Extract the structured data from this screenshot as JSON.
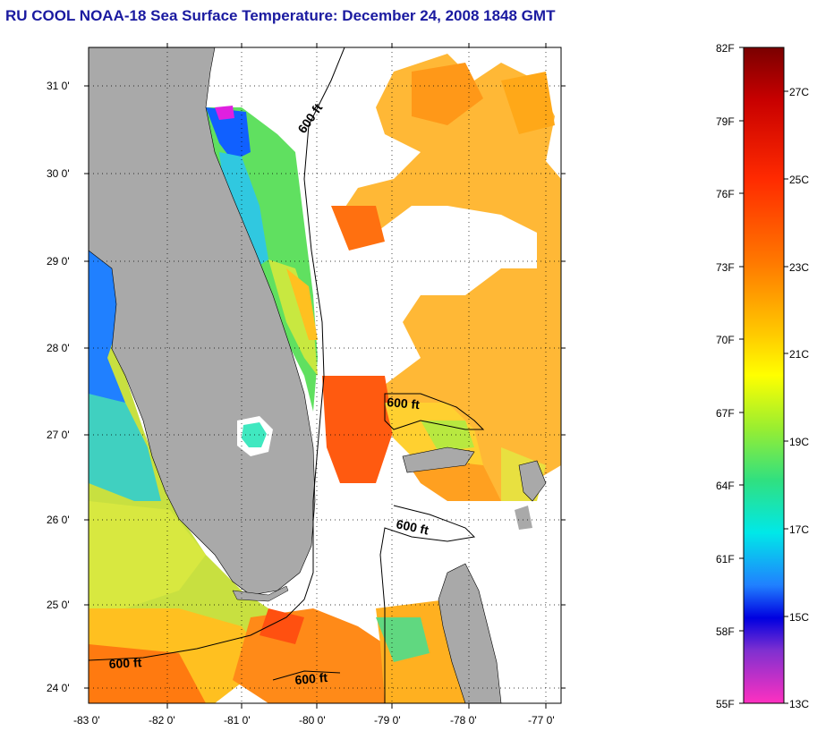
{
  "title": "RU COOL  NOAA-18  Sea Surface Temperature:  December 24, 2008 1848 GMT",
  "map": {
    "lat_ticks": [
      "31 0'",
      "30 0'",
      "29 0'",
      "28 0'",
      "27 0'",
      "26 0'",
      "25 0'",
      "24 0'"
    ],
    "lon_ticks": [
      "-83 0'",
      "-82 0'",
      "-81 0'",
      "-80 0'",
      "-79 0'",
      "-78 0'",
      "-77 0'"
    ],
    "contour_labels": [
      "600 ft",
      "600 ft",
      "600 ft",
      "600 ft",
      "600 ft"
    ],
    "colors": {
      "land": "#a9a9a9",
      "cloud": "#ffffff",
      "grid": "#000000"
    }
  },
  "colorbar": {
    "fahrenheit": [
      "82F",
      "79F",
      "76F",
      "73F",
      "70F",
      "67F",
      "64F",
      "61F",
      "58F",
      "55F"
    ],
    "celsius": [
      "27C",
      "25C",
      "23C",
      "21C",
      "19C",
      "17C",
      "15C",
      "13C"
    ]
  }
}
